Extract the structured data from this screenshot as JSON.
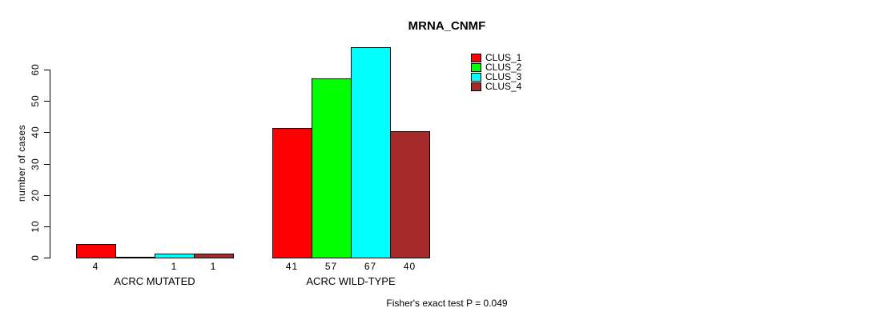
{
  "chart_data": {
    "type": "bar",
    "title": "MRNA_CNMF",
    "ylabel": "number of cases",
    "xlabel": "",
    "yticks": [
      0,
      10,
      20,
      30,
      40,
      50,
      60
    ],
    "ylim": [
      0,
      67
    ],
    "grid": false,
    "legend_position": "top-right",
    "categories": [
      "ACRC MUTATED",
      "ACRC WILD-TYPE"
    ],
    "series": [
      {
        "name": "CLUS_1",
        "color": "#FF0000",
        "values": [
          4,
          41
        ]
      },
      {
        "name": "CLUS_2",
        "color": "#00FF00",
        "values": [
          0,
          57
        ]
      },
      {
        "name": "CLUS_3",
        "color": "#00FFFF",
        "values": [
          1,
          67
        ]
      },
      {
        "name": "CLUS_4",
        "color": "#A52A2A",
        "values": [
          1,
          40
        ]
      }
    ],
    "bar_value_labels": {
      "ACRC MUTATED": [
        "4",
        "",
        "1",
        "1"
      ],
      "ACRC WILD-TYPE": [
        "41",
        "57",
        "67",
        "40"
      ]
    },
    "annotation": "Fisher's exact test P = 0.049"
  }
}
